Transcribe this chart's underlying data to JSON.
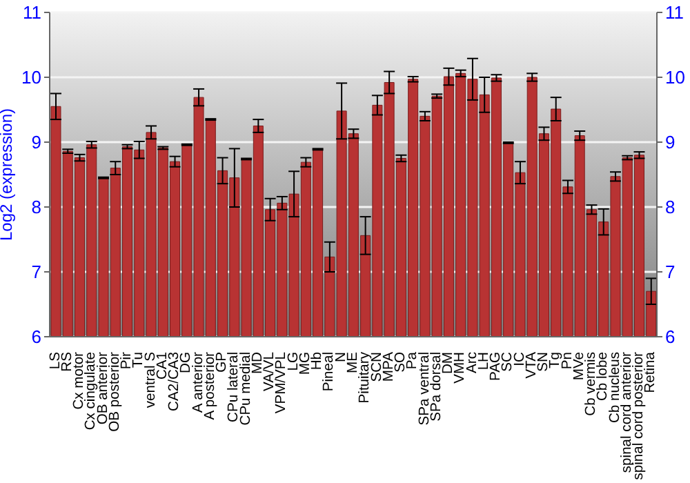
{
  "chart_data": {
    "type": "bar",
    "ylabel": "Log2 (expression)",
    "categories": [
      "LS",
      "RS",
      "Cx motor",
      "Cx cingulate",
      "OB anterior",
      "OB posterior",
      "Pir",
      "Tu",
      "ventral S",
      "CA1",
      "CA2/CA3",
      "DG",
      "A anterior",
      "A posterior",
      "GP",
      "CPu lateral",
      "CPu medial",
      "MD",
      "VA/VL",
      "VPM/VPL",
      "LG",
      "MG",
      "Hb",
      "Pineal",
      "N",
      "ME",
      "Pituitary",
      "SCN",
      "MPA",
      "SO",
      "Pa",
      "SPa ventral",
      "SPa dorsal",
      "DM",
      "VMH",
      "Arc",
      "LH",
      "PAG",
      "SC",
      "IC",
      "VTA",
      "SN",
      "Tg",
      "Pn",
      "MVe",
      "Cb vermis",
      "Cb lobe",
      "Cb nucleus",
      "spinal cord anterior",
      "spinal cord posterior",
      "Retina"
    ],
    "values": [
      9.55,
      8.86,
      8.76,
      8.96,
      8.45,
      8.6,
      8.93,
      8.88,
      9.15,
      8.91,
      8.7,
      8.96,
      9.69,
      9.35,
      8.56,
      8.45,
      8.74,
      9.25,
      7.96,
      8.06,
      8.2,
      8.69,
      8.89,
      7.23,
      9.48,
      9.13,
      7.56,
      9.57,
      9.92,
      8.75,
      9.97,
      9.4,
      9.71,
      10.01,
      10.06,
      9.97,
      9.73,
      9.99,
      8.99,
      8.53,
      10.0,
      9.13,
      9.51,
      8.31,
      9.1,
      7.96,
      7.77,
      8.47,
      8.76,
      8.8,
      6.7
    ],
    "errors": [
      0.2,
      0.03,
      0.05,
      0.05,
      0.01,
      0.1,
      0.03,
      0.13,
      0.1,
      0.02,
      0.08,
      0.01,
      0.13,
      0.01,
      0.2,
      0.45,
      0.01,
      0.1,
      0.17,
      0.1,
      0.35,
      0.07,
      0.01,
      0.23,
      0.43,
      0.07,
      0.29,
      0.15,
      0.17,
      0.05,
      0.04,
      0.07,
      0.03,
      0.13,
      0.05,
      0.32,
      0.27,
      0.05,
      0.01,
      0.17,
      0.06,
      0.1,
      0.18,
      0.1,
      0.07,
      0.07,
      0.2,
      0.07,
      0.03,
      0.05,
      0.2
    ],
    "color": "#b83333",
    "ylim": [
      6,
      11
    ],
    "yticks": [
      6,
      7,
      8,
      9,
      10,
      11
    ],
    "y2lim": [
      6,
      11
    ],
    "y2ticks": [
      6,
      7,
      8,
      9,
      10,
      11
    ],
    "grid": "y",
    "legend": false
  }
}
